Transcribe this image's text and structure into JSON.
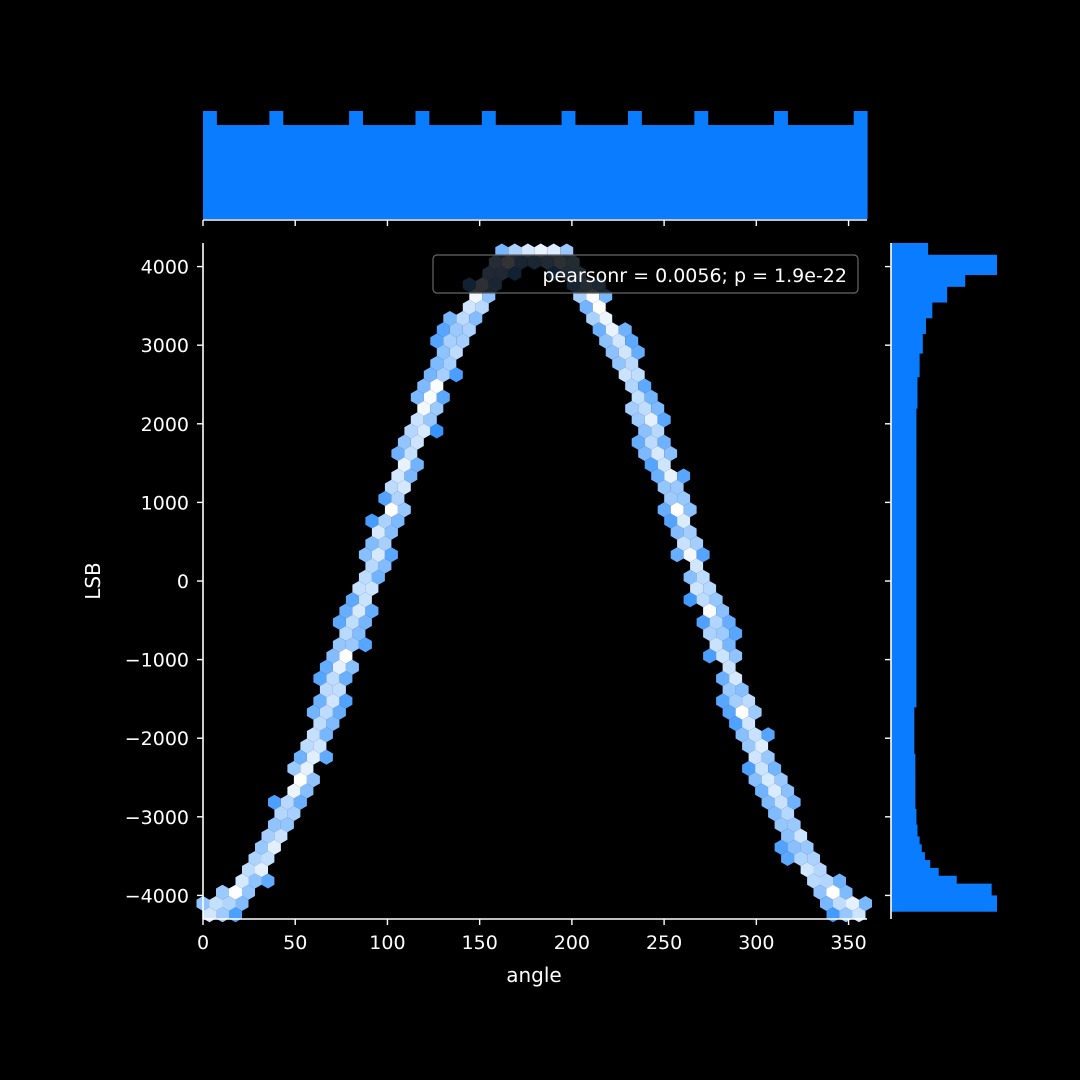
{
  "chart_data": {
    "type": "hexbin-joint",
    "title": "",
    "xlabel": "angle",
    "ylabel": "LSB",
    "xlim": [
      0,
      360
    ],
    "ylim": [
      -4300,
      4300
    ],
    "xticks": [
      0,
      50,
      100,
      150,
      200,
      250,
      300,
      350
    ],
    "yticks": [
      -4000,
      -3000,
      -2000,
      -1000,
      0,
      1000,
      2000,
      3000,
      4000
    ],
    "xtick_labels": [
      "0",
      "50",
      "100",
      "150",
      "200",
      "250",
      "300",
      "350"
    ],
    "ytick_labels": [
      "−4000",
      "−3000",
      "−2000",
      "−1000",
      "0",
      "1000",
      "2000",
      "3000",
      "4000"
    ],
    "legend_text": "pearsonr = 0.0056; p = 1.9e-22",
    "legend_position": "upper-right",
    "curve": {
      "description_function": "LSB = -amplitude * cos(angle)",
      "amplitude": 4200,
      "x_start": 0,
      "x_end": 360
    },
    "marginal_x": {
      "bin_count": 50,
      "base_level": 0.87,
      "peak_level": 1.0,
      "peak_bins": [
        0,
        5,
        11,
        16,
        21,
        27,
        32,
        37,
        43,
        49
      ]
    },
    "marginal_y": {
      "bins": [
        {
          "lo": -4200,
          "hi": -4000,
          "v": 1.0
        },
        {
          "lo": -4000,
          "hi": -3850,
          "v": 0.95
        },
        {
          "lo": -3850,
          "hi": -3750,
          "v": 0.62
        },
        {
          "lo": -3750,
          "hi": -3650,
          "v": 0.45
        },
        {
          "lo": -3650,
          "hi": -3550,
          "v": 0.37
        },
        {
          "lo": -3550,
          "hi": -3450,
          "v": 0.32
        },
        {
          "lo": -3450,
          "hi": -3350,
          "v": 0.29
        },
        {
          "lo": -3350,
          "hi": -3250,
          "v": 0.27
        },
        {
          "lo": -3250,
          "hi": -3100,
          "v": 0.25
        },
        {
          "lo": -3100,
          "hi": -2900,
          "v": 0.24
        },
        {
          "lo": -2900,
          "hi": -2600,
          "v": 0.23
        },
        {
          "lo": -2600,
          "hi": -2200,
          "v": 0.23
        },
        {
          "lo": -2200,
          "hi": -1600,
          "v": 0.22
        },
        {
          "lo": -1600,
          "hi": 1600,
          "v": 0.24
        },
        {
          "lo": 1600,
          "hi": 2200,
          "v": 0.24
        },
        {
          "lo": 2200,
          "hi": 2600,
          "v": 0.25
        },
        {
          "lo": 2600,
          "hi": 2900,
          "v": 0.27
        },
        {
          "lo": 2900,
          "hi": 3150,
          "v": 0.3
        },
        {
          "lo": 3150,
          "hi": 3350,
          "v": 0.33
        },
        {
          "lo": 3350,
          "hi": 3550,
          "v": 0.39
        },
        {
          "lo": 3550,
          "hi": 3750,
          "v": 0.53
        },
        {
          "lo": 3750,
          "hi": 3900,
          "v": 0.7
        },
        {
          "lo": 3900,
          "hi": 4150,
          "v": 1.0
        },
        {
          "lo": 4150,
          "hi": 4300,
          "v": 0.35
        }
      ]
    },
    "colors": {
      "background": "#000000",
      "foreground": "#ffffff",
      "marginal_fill": "#0a7cff",
      "hex_low": "#0a7cff",
      "hex_high": "#ffffff",
      "legend_border": "#666666"
    }
  }
}
